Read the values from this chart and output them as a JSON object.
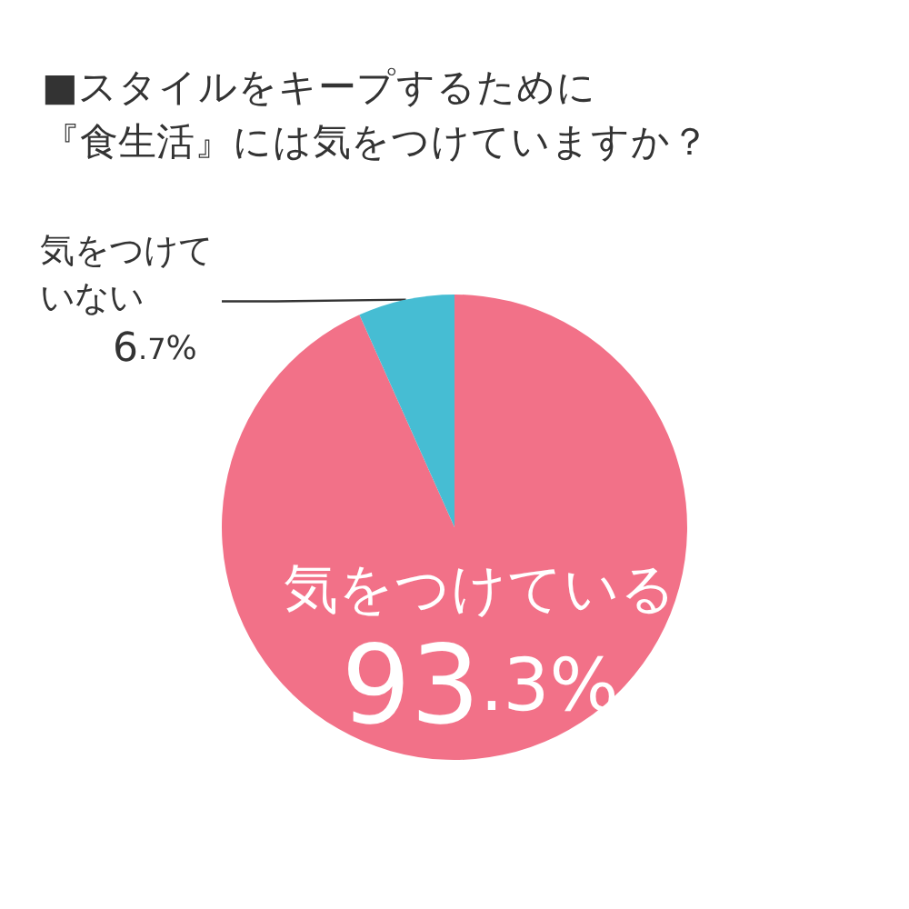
{
  "chart_data": {
    "type": "pie",
    "title": "■スタイルをキープするために『食生活』には気をつけていますか？",
    "categories": [
      "気をつけている",
      "気をつけていない"
    ],
    "values": [
      93.3,
      6.7
    ],
    "colors": [
      "#f27188",
      "#46bdd3"
    ],
    "value_labels": [
      "93.3%",
      "6.7%"
    ],
    "legend": false
  }
}
